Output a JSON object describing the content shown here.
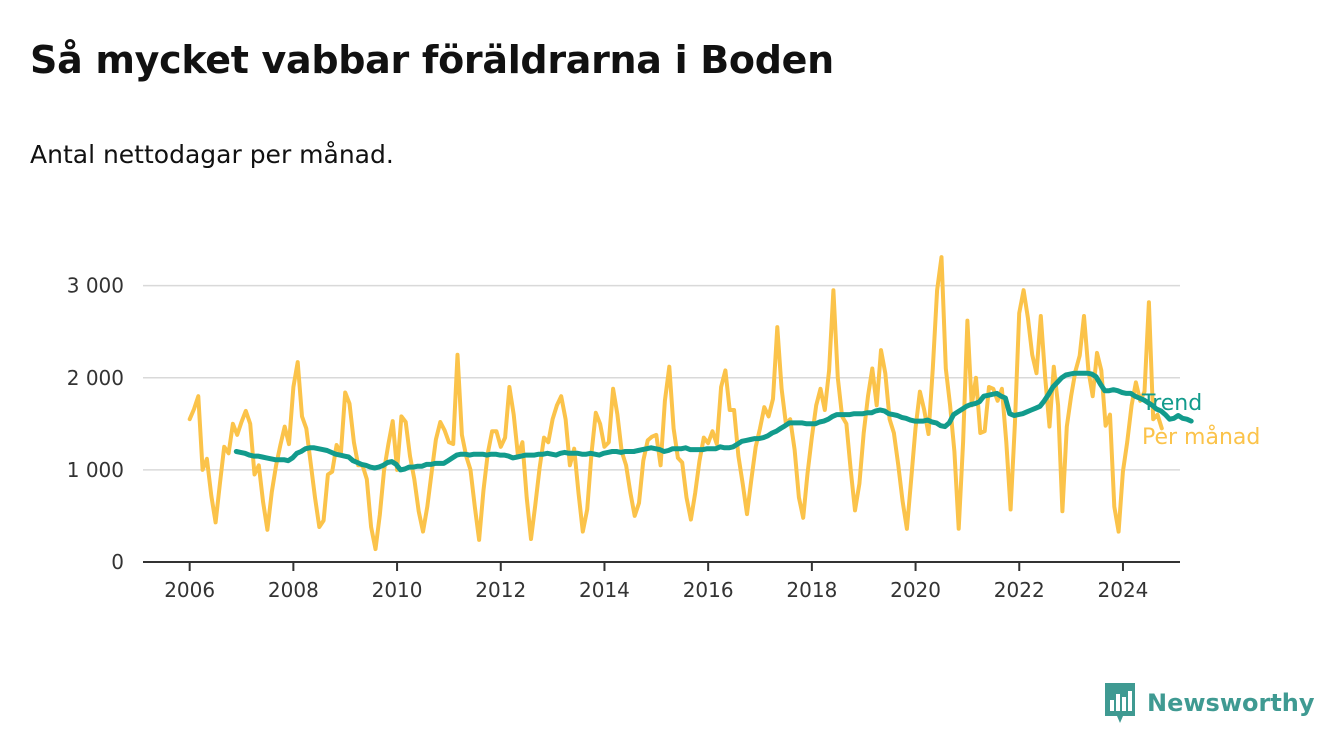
{
  "header": {
    "title": "Så mycket vabbar föräldrarna i Boden",
    "subtitle": "Antal nettodagar per månad."
  },
  "brand": {
    "name": "Newsworthy",
    "icon": "newsworthy-logo-icon",
    "color": "#3f9a92"
  },
  "chart_data": {
    "type": "line",
    "title": "Så mycket vabbar föräldrarna i Boden",
    "subtitle": "Antal nettodagar per månad.",
    "xlabel": "",
    "ylabel": "",
    "xlim": [
      2005.1,
      2025.1
    ],
    "ylim": [
      0,
      3300
    ],
    "grid": true,
    "legend_placement": "end-of-line labels, right",
    "x_ticks": [
      2006,
      2008,
      2010,
      2012,
      2014,
      2016,
      2018,
      2020,
      2022,
      2024
    ],
    "x_tick_labels": [
      "2006",
      "2008",
      "2010",
      "2012",
      "2014",
      "2016",
      "2018",
      "2020",
      "2022",
      "2024"
    ],
    "y_ticks": [
      0,
      1000,
      2000,
      3000
    ],
    "y_tick_labels": [
      "0",
      "1 000",
      "2 000",
      "3 000"
    ],
    "series": [
      {
        "name": "Per månad",
        "color": "#fbc34a",
        "x_start": 2006.0,
        "step": 0.08333,
        "values": [
          1550,
          1660,
          1800,
          1000,
          1120,
          720,
          430,
          850,
          1250,
          1180,
          1500,
          1380,
          1520,
          1640,
          1500,
          950,
          1050,
          650,
          350,
          760,
          1050,
          1270,
          1470,
          1280,
          1900,
          2170,
          1580,
          1450,
          1080,
          700,
          380,
          450,
          950,
          980,
          1270,
          1180,
          1840,
          1720,
          1300,
          1050,
          1050,
          900,
          380,
          140,
          510,
          1000,
          1280,
          1530,
          1000,
          1580,
          1520,
          1150,
          900,
          550,
          330,
          600,
          970,
          1330,
          1520,
          1430,
          1300,
          1280,
          2250,
          1380,
          1150,
          1000,
          600,
          240,
          780,
          1180,
          1420,
          1420,
          1250,
          1350,
          1900,
          1600,
          1150,
          1300,
          700,
          250,
          620,
          1020,
          1350,
          1300,
          1550,
          1700,
          1800,
          1550,
          1050,
          1230,
          750,
          330,
          570,
          1180,
          1620,
          1500,
          1250,
          1300,
          1880,
          1600,
          1200,
          1050,
          750,
          500,
          640,
          1100,
          1320,
          1360,
          1380,
          1050,
          1750,
          2120,
          1450,
          1130,
          1080,
          700,
          460,
          750,
          1100,
          1350,
          1290,
          1420,
          1280,
          1900,
          2080,
          1650,
          1650,
          1150,
          850,
          520,
          900,
          1250,
          1450,
          1680,
          1580,
          1770,
          2550,
          1880,
          1500,
          1550,
          1220,
          700,
          480,
          960,
          1350,
          1700,
          1880,
          1650,
          2080,
          2950,
          2000,
          1580,
          1500,
          1000,
          560,
          850,
          1400,
          1800,
          2100,
          1700,
          2300,
          2050,
          1550,
          1400,
          1050,
          660,
          360,
          900,
          1450,
          1850,
          1650,
          1390,
          2100,
          2950,
          3310,
          2100,
          1700,
          1200,
          360,
          1300,
          2620,
          1700,
          2000,
          1400,
          1420,
          1900,
          1880,
          1750,
          1880,
          1300,
          570,
          1500,
          2700,
          2950,
          2650,
          2250,
          2050,
          2670,
          2000,
          1470,
          2120,
          1700,
          550,
          1470,
          1800,
          2070,
          2240,
          2670,
          2080,
          1800,
          2270,
          2080,
          1480,
          1600,
          600,
          330,
          980,
          1300,
          1700,
          1950,
          1750,
          1850,
          2820,
          1550,
          1600,
          1450
        ]
      },
      {
        "name": "Trend",
        "color": "#129b8c",
        "x_start": 2006.9,
        "step": 0.08333,
        "values": [
          1200,
          1190,
          1180,
          1160,
          1150,
          1150,
          1140,
          1130,
          1120,
          1110,
          1110,
          1110,
          1100,
          1130,
          1180,
          1200,
          1230,
          1240,
          1240,
          1230,
          1220,
          1210,
          1190,
          1170,
          1160,
          1150,
          1140,
          1100,
          1080,
          1060,
          1050,
          1030,
          1020,
          1030,
          1050,
          1080,
          1090,
          1060,
          1000,
          1010,
          1030,
          1030,
          1040,
          1040,
          1060,
          1060,
          1070,
          1070,
          1070,
          1100,
          1130,
          1160,
          1170,
          1170,
          1160,
          1170,
          1170,
          1170,
          1160,
          1170,
          1170,
          1160,
          1160,
          1150,
          1130,
          1140,
          1150,
          1160,
          1160,
          1160,
          1170,
          1170,
          1180,
          1170,
          1160,
          1180,
          1190,
          1180,
          1180,
          1180,
          1170,
          1170,
          1180,
          1170,
          1160,
          1180,
          1190,
          1200,
          1200,
          1190,
          1200,
          1200,
          1200,
          1210,
          1220,
          1230,
          1240,
          1230,
          1220,
          1200,
          1210,
          1230,
          1230,
          1230,
          1240,
          1220,
          1220,
          1220,
          1220,
          1230,
          1230,
          1230,
          1250,
          1240,
          1240,
          1250,
          1280,
          1310,
          1320,
          1330,
          1340,
          1340,
          1350,
          1370,
          1400,
          1420,
          1450,
          1480,
          1510,
          1510,
          1510,
          1510,
          1500,
          1500,
          1500,
          1520,
          1530,
          1550,
          1580,
          1600,
          1600,
          1600,
          1600,
          1610,
          1610,
          1610,
          1620,
          1620,
          1640,
          1650,
          1640,
          1610,
          1600,
          1590,
          1570,
          1560,
          1540,
          1530,
          1530,
          1530,
          1540,
          1520,
          1510,
          1480,
          1470,
          1510,
          1600,
          1630,
          1660,
          1690,
          1710,
          1720,
          1740,
          1800,
          1810,
          1820,
          1830,
          1800,
          1780,
          1610,
          1590,
          1600,
          1610,
          1630,
          1650,
          1670,
          1690,
          1750,
          1820,
          1900,
          1950,
          2000,
          2030,
          2040,
          2050,
          2050,
          2050,
          2050,
          2040,
          2010,
          1930,
          1860,
          1860,
          1870,
          1860,
          1840,
          1830,
          1830,
          1800,
          1780,
          1760,
          1730,
          1700,
          1660,
          1640,
          1600,
          1550,
          1560,
          1590,
          1560,
          1550,
          1530
        ]
      }
    ]
  }
}
